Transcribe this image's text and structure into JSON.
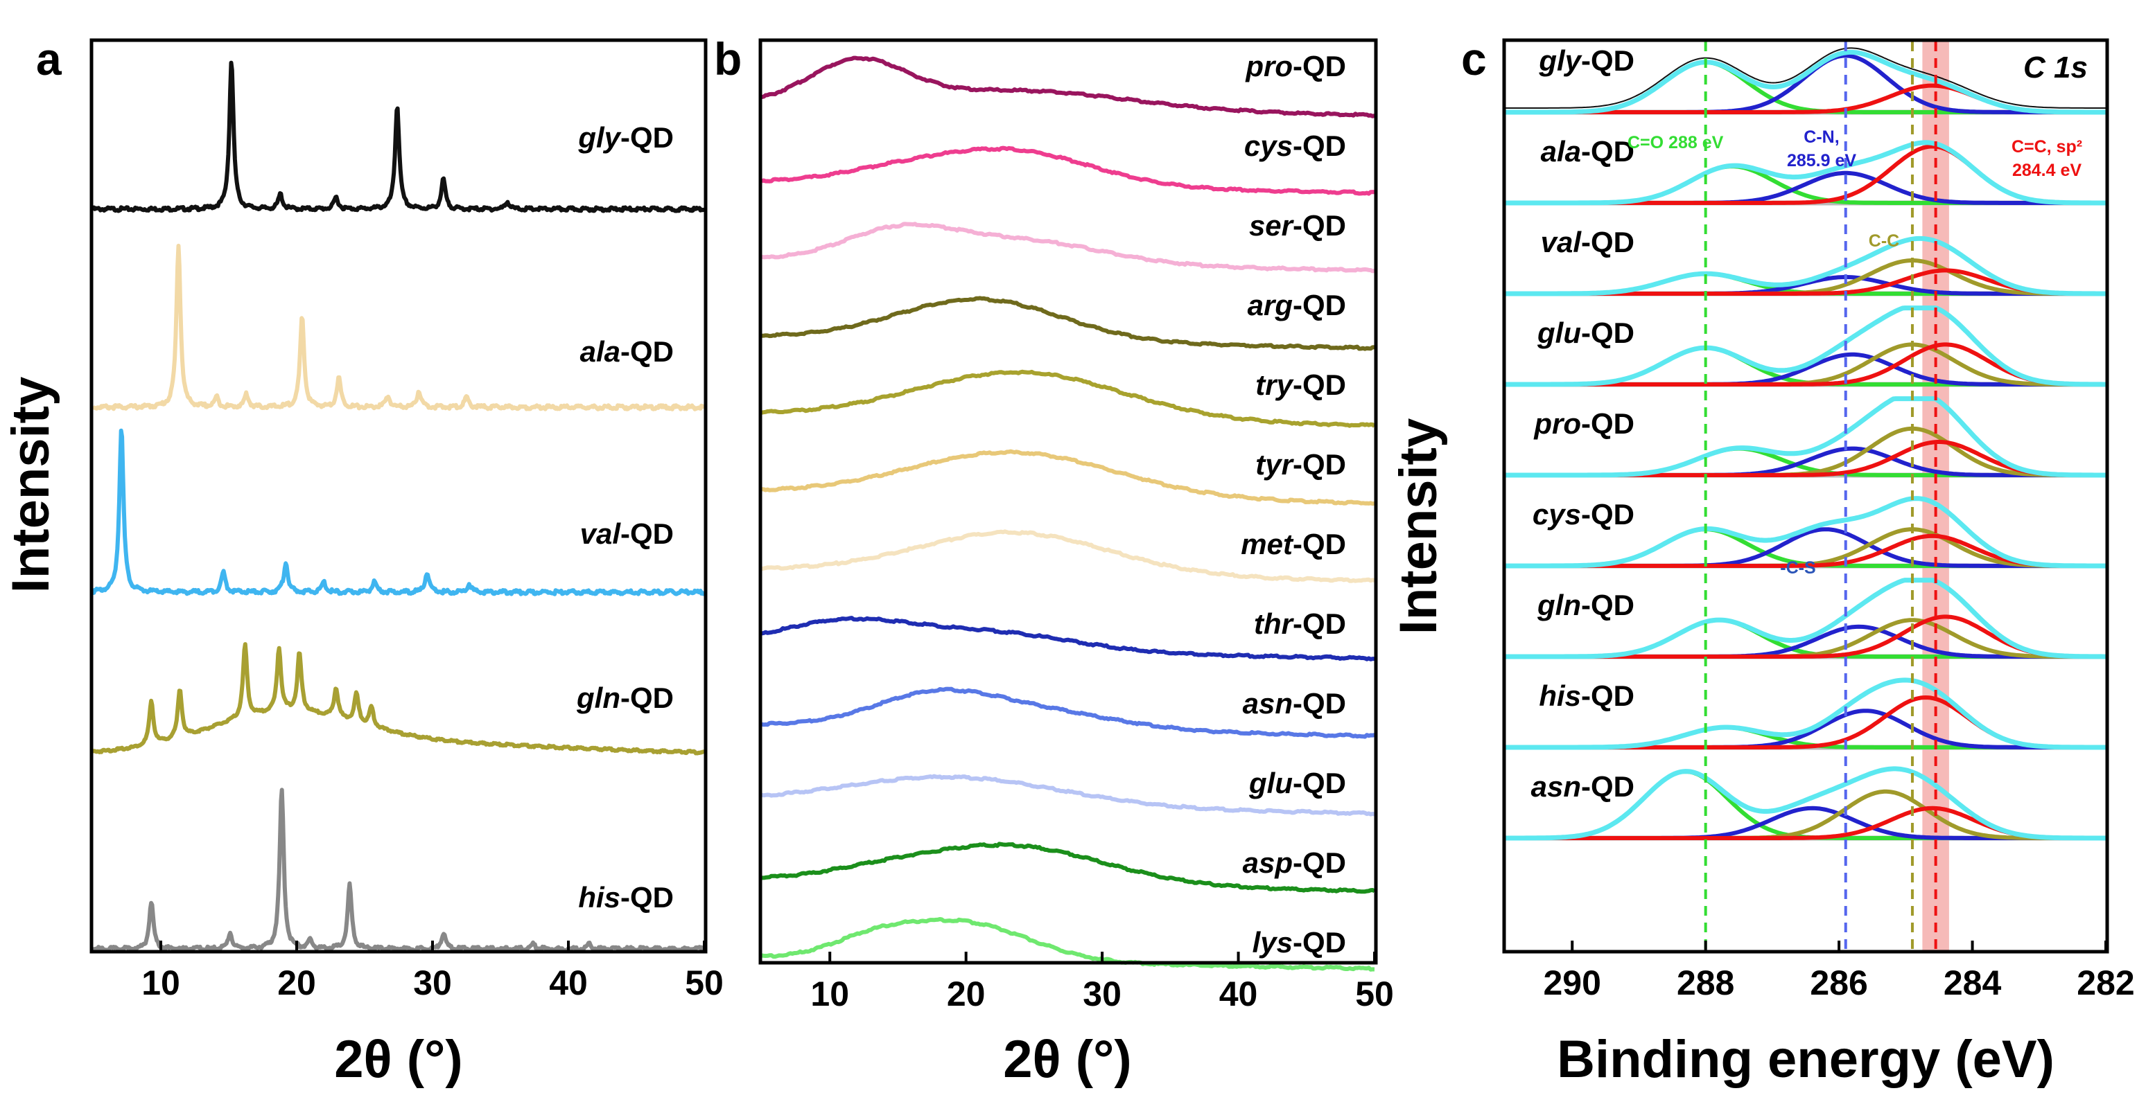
{
  "figure": {
    "colors": {
      "green": "#33dd33",
      "blue": "#2222cc",
      "red": "#ee1111",
      "olive": "#a09a2a",
      "cyan": "#5ce8f0",
      "envelope": "#111111",
      "baseline": "#bbbbbb"
    }
  },
  "chart_data": [
    {
      "panel": "a",
      "type": "line",
      "title": "",
      "xlabel": "2θ (°)",
      "ylabel": "Intensity",
      "xlim": [
        5,
        50
      ],
      "xticks": [
        "10",
        "20",
        "30",
        "40",
        "50"
      ],
      "series": [
        {
          "name_prefix": "gly",
          "name_suffix": "-QD",
          "color": "#111111",
          "peaks": [
            [
              15.2,
              1.0
            ],
            [
              18.8,
              0.1
            ],
            [
              22.9,
              0.08
            ],
            [
              27.4,
              0.7
            ],
            [
              30.8,
              0.2
            ],
            [
              35.5,
              0.05
            ]
          ]
        },
        {
          "name_prefix": "ala",
          "name_suffix": "-QD",
          "color": "#f2d9a6",
          "peaks": [
            [
              11.3,
              1.0
            ],
            [
              14.1,
              0.06
            ],
            [
              16.3,
              0.08
            ],
            [
              20.4,
              0.55
            ],
            [
              23.1,
              0.18
            ],
            [
              26.7,
              0.07
            ],
            [
              29.0,
              0.1
            ],
            [
              32.5,
              0.06
            ]
          ]
        },
        {
          "name_prefix": "val",
          "name_suffix": "-QD",
          "color": "#3fb5f0",
          "peaks": [
            [
              7.1,
              1.0
            ],
            [
              14.6,
              0.12
            ],
            [
              19.2,
              0.18
            ],
            [
              22.0,
              0.06
            ],
            [
              25.7,
              0.06
            ],
            [
              29.6,
              0.12
            ],
            [
              32.7,
              0.05
            ]
          ]
        },
        {
          "name_prefix": "gln",
          "name_suffix": "-QD",
          "color": "#a8a032",
          "peaks": [
            [
              9.3,
              0.45
            ],
            [
              11.4,
              0.5
            ],
            [
              16.2,
              0.75
            ],
            [
              18.7,
              0.65
            ],
            [
              20.2,
              0.6
            ],
            [
              22.9,
              0.3
            ],
            [
              24.4,
              0.3
            ],
            [
              25.5,
              0.2
            ]
          ]
        },
        {
          "name_prefix": "his",
          "name_suffix": "-QD",
          "color": "#888888",
          "peaks": [
            [
              9.3,
              0.3
            ],
            [
              15.1,
              0.1
            ],
            [
              18.9,
              1.0
            ],
            [
              21.0,
              0.05
            ],
            [
              23.9,
              0.4
            ],
            [
              30.8,
              0.1
            ],
            [
              37.4,
              0.03
            ],
            [
              41.5,
              0.03
            ]
          ]
        }
      ]
    },
    {
      "panel": "b",
      "type": "line",
      "title": "",
      "xlabel": "2θ (°)",
      "xlim": [
        5,
        50
      ],
      "xticks": [
        "10",
        "20",
        "30",
        "40",
        "50"
      ],
      "series": [
        {
          "name_prefix": "pro",
          "name_suffix": "-QD",
          "color": "#99155e",
          "humps": [
            [
              12,
              3.5,
              0.8
            ],
            [
              24,
              8,
              0.35
            ]
          ]
        },
        {
          "name_prefix": "cys",
          "name_suffix": "-QD",
          "color": "#ee3d8f",
          "humps": [
            [
              23,
              6,
              0.7
            ],
            [
              14,
              4,
              0.15
            ]
          ]
        },
        {
          "name_prefix": "ser",
          "name_suffix": "-QD",
          "color": "#f5b0d5",
          "humps": [
            [
              15,
              4,
              0.55
            ],
            [
              24,
              6,
              0.45
            ]
          ]
        },
        {
          "name_prefix": "arg",
          "name_suffix": "-QD",
          "color": "#6f6a1c",
          "humps": [
            [
              21,
              6,
              0.8
            ]
          ]
        },
        {
          "name_prefix": "try",
          "name_suffix": "-QD",
          "color": "#a8a22e",
          "humps": [
            [
              24,
              7.5,
              0.9
            ]
          ]
        },
        {
          "name_prefix": "tyr",
          "name_suffix": "-QD",
          "color": "#e8c878",
          "humps": [
            [
              23.5,
              7.5,
              0.85
            ]
          ]
        },
        {
          "name_prefix": "met",
          "name_suffix": "-QD",
          "color": "#f5e3bf",
          "humps": [
            [
              23.5,
              7,
              0.8
            ]
          ]
        },
        {
          "name_prefix": "thr",
          "name_suffix": "-QD",
          "color": "#1f2db2",
          "humps": [
            [
              11,
              5,
              0.5
            ],
            [
              22,
              6,
              0.35
            ]
          ]
        },
        {
          "name_prefix": "asn",
          "name_suffix": "-QD",
          "color": "#5878e6",
          "humps": [
            [
              17.5,
              4.5,
              0.55
            ],
            [
              25,
              6,
              0.35
            ]
          ]
        },
        {
          "name_prefix": "glu",
          "name_suffix": "-QD",
          "color": "#b7c4f5",
          "humps": [
            [
              19,
              8,
              0.55
            ]
          ]
        },
        {
          "name_prefix": "asp",
          "name_suffix": "-QD",
          "color": "#1b8f1b",
          "humps": [
            [
              23,
              7,
              0.75
            ],
            [
              13,
              4,
              0.1
            ]
          ]
        },
        {
          "name_prefix": "lys",
          "name_suffix": "-QD",
          "color": "#6fe86f",
          "humps": [
            [
              19.5,
              5,
              0.75
            ],
            [
              13,
              3,
              0.25
            ]
          ]
        }
      ]
    },
    {
      "panel": "c",
      "type": "line",
      "title": "C 1s",
      "xlabel": "Binding energy (eV)",
      "ylabel": "Intensity",
      "xlim": [
        291,
        282
      ],
      "xticks": [
        "290",
        "288",
        "286",
        "284",
        "282"
      ],
      "reference_lines_eV": [
        288.0,
        285.9,
        284.9,
        284.55
      ],
      "highlight_band_eV": [
        284.75,
        284.35
      ],
      "annotations": [
        {
          "text": "C=O 288 eV",
          "color": "#33dd33"
        },
        {
          "text": "C-N,",
          "color": "#2222cc"
        },
        {
          "text": "285.9 eV",
          "color": "#2222cc"
        },
        {
          "text": "C=C, sp²",
          "color": "#ee1111"
        },
        {
          "text": "284.4 eV",
          "color": "#ee1111"
        },
        {
          "text": "C-C",
          "color": "#a09a2a"
        },
        {
          "text": "-C-S",
          "color": "#2b55b8"
        }
      ],
      "components": [
        "C=O (green)",
        "C-N / C-S (blue)",
        "C-C (olive)",
        "C=C sp² (red)",
        "fit envelope (cyan)"
      ],
      "series": [
        {
          "name_prefix": "gly",
          "name_suffix": "-QD",
          "peaks": {
            "green": [
              288.0,
              0.75
            ],
            "blue": [
              285.9,
              0.85
            ],
            "red": [
              284.6,
              0.4
            ]
          }
        },
        {
          "name_prefix": "ala",
          "name_suffix": "-QD",
          "peaks": {
            "green": [
              287.6,
              0.55
            ],
            "blue": [
              285.9,
              0.45
            ],
            "red": [
              284.6,
              0.85
            ]
          }
        },
        {
          "name_prefix": "val",
          "name_suffix": "-QD",
          "peaks": {
            "green": [
              288.0,
              0.3
            ],
            "blue": [
              285.9,
              0.25
            ],
            "olive": [
              284.9,
              0.5
            ],
            "red": [
              284.4,
              0.35
            ]
          }
        },
        {
          "name_prefix": "glu",
          "name_suffix": "-QD",
          "peaks": {
            "green": [
              288.0,
              0.55
            ],
            "blue": [
              285.8,
              0.45
            ],
            "olive": [
              284.9,
              0.6
            ],
            "red": [
              284.4,
              0.6
            ]
          }
        },
        {
          "name_prefix": "pro",
          "name_suffix": "-QD",
          "peaks": {
            "green": [
              287.5,
              0.4
            ],
            "blue": [
              285.8,
              0.4
            ],
            "olive": [
              284.9,
              0.7
            ],
            "red": [
              284.5,
              0.5
            ]
          }
        },
        {
          "name_prefix": "cys",
          "name_suffix": "-QD",
          "peaks": {
            "green": [
              288.0,
              0.55
            ],
            "blue": [
              286.2,
              0.55
            ],
            "olive": [
              284.9,
              0.55
            ],
            "red": [
              284.6,
              0.45
            ]
          }
        },
        {
          "name_prefix": "gln",
          "name_suffix": "-QD",
          "peaks": {
            "green": [
              287.8,
              0.55
            ],
            "blue": [
              285.7,
              0.45
            ],
            "olive": [
              284.9,
              0.55
            ],
            "red": [
              284.4,
              0.6
            ]
          }
        },
        {
          "name_prefix": "his",
          "name_suffix": "-QD",
          "peaks": {
            "green": [
              287.7,
              0.3
            ],
            "blue": [
              285.6,
              0.55
            ],
            "red": [
              284.7,
              0.75
            ]
          }
        },
        {
          "name_prefix": "asn",
          "name_suffix": "-QD",
          "peaks": {
            "green": [
              288.3,
              1.0
            ],
            "blue": [
              286.4,
              0.45
            ],
            "olive": [
              285.3,
              0.7
            ],
            "red": [
              284.6,
              0.45
            ]
          }
        }
      ]
    }
  ]
}
